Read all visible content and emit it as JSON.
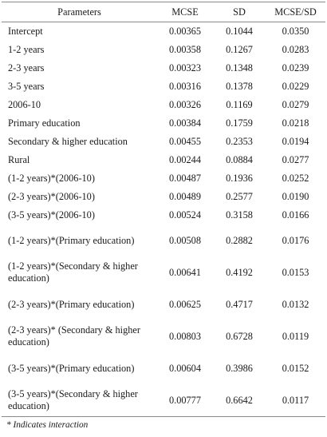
{
  "table": {
    "headers": [
      "Parameters",
      "MCSE",
      "SD",
      "MCSE/SD"
    ],
    "rows": [
      {
        "parameter": "Intercept",
        "mcse": "0.00365",
        "sd": "0.1044",
        "ratio": "0.0350"
      },
      {
        "parameter": "1-2 years",
        "mcse": "0.00358",
        "sd": "0.1267",
        "ratio": "0.0283"
      },
      {
        "parameter": "2-3 years",
        "mcse": "0.00323",
        "sd": "0.1348",
        "ratio": "0.0239"
      },
      {
        "parameter": "3-5 years",
        "mcse": "0.00316",
        "sd": "0.1378",
        "ratio": "0.0229"
      },
      {
        "parameter": "2006-10",
        "mcse": "0.00326",
        "sd": "0.1169",
        "ratio": "0.0279"
      },
      {
        "parameter": "Primary education",
        "mcse": "0.00384",
        "sd": "0.1759",
        "ratio": "0.0218"
      },
      {
        "parameter": "Secondary & higher education",
        "mcse": "0.00455",
        "sd": "0.2353",
        "ratio": "0.0194"
      },
      {
        "parameter": "Rural",
        "mcse": "0.00244",
        "sd": "0.0884",
        "ratio": "0.0277"
      },
      {
        "parameter": "(1-2 years)*(2006-10)",
        "mcse": "0.00487",
        "sd": "0.1936",
        "ratio": "0.0252"
      },
      {
        "parameter": "(2-3 years)*(2006-10)",
        "mcse": "0.00489",
        "sd": "0.2577",
        "ratio": "0.0190"
      },
      {
        "parameter": "(3-5 years)*(2006-10)",
        "mcse": "0.00524",
        "sd": "0.3158",
        "ratio": "0.0166"
      },
      {
        "parameter": "(1-2 years)*(Primary education)",
        "mcse": "0.00508",
        "sd": "0.2882",
        "ratio": "0.0176"
      },
      {
        "parameter": "(1-2 years)*(Secondary & higher education)",
        "mcse": "0.00641",
        "sd": "0.4192",
        "ratio": "0.0153"
      },
      {
        "parameter": "(2-3 years)*(Primary education)",
        "mcse": "0.00625",
        "sd": "0.4717",
        "ratio": "0.0132"
      },
      {
        "parameter": "(2-3 years)* (Secondary & higher education)",
        "mcse": "0.00803",
        "sd": "0.6728",
        "ratio": "0.0119"
      },
      {
        "parameter": "(3-5 years)*(Primary education)",
        "mcse": "0.00604",
        "sd": "0.3986",
        "ratio": "0.0152"
      },
      {
        "parameter": "(3-5 years)*(Secondary & higher education)",
        "mcse": "0.00777",
        "sd": "0.6642",
        "ratio": "0.0117"
      }
    ]
  },
  "footnote": "* Indicates interaction"
}
